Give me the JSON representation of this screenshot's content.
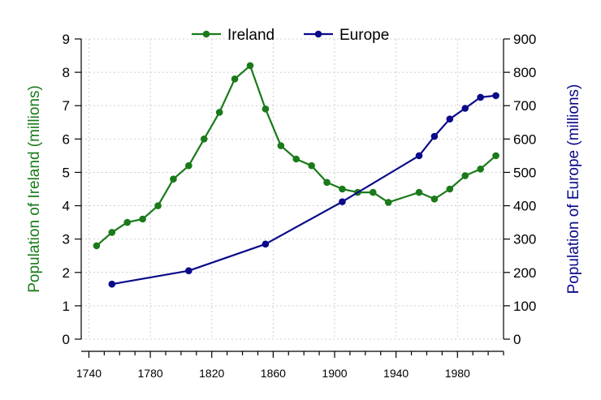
{
  "chart_data": {
    "type": "line",
    "x_axis": {
      "range": [
        1735,
        2010
      ],
      "ticks": [
        1740,
        1780,
        1820,
        1860,
        1900,
        1940,
        1980
      ],
      "minor_step": 10
    },
    "y_left": {
      "label": "Population of Ireland (millions)",
      "range": [
        0,
        9
      ],
      "ticks": [
        0,
        1,
        2,
        3,
        4,
        5,
        6,
        7,
        8,
        9
      ],
      "color": "#1a7a1a"
    },
    "y_right": {
      "label": "Population of Europe (millions)",
      "range": [
        0,
        900
      ],
      "ticks": [
        0,
        100,
        200,
        300,
        400,
        500,
        600,
        700,
        800,
        900
      ],
      "color": "#0a0a8a"
    },
    "grid": true,
    "legend": {
      "placement": "top-center"
    },
    "series": [
      {
        "name": "Ireland",
        "axis": "left",
        "color": "#1a7a1a",
        "x": [
          1745,
          1755,
          1765,
          1775,
          1785,
          1795,
          1805,
          1815,
          1825,
          1835,
          1845,
          1855,
          1865,
          1875,
          1885,
          1895,
          1905,
          1915,
          1925,
          1935,
          1955,
          1965,
          1975,
          1985,
          1995,
          2005
        ],
        "y": [
          2.8,
          3.2,
          3.5,
          3.6,
          4.0,
          4.8,
          5.2,
          6.0,
          6.8,
          7.8,
          8.2,
          6.9,
          5.8,
          5.4,
          5.2,
          4.7,
          4.5,
          4.4,
          4.4,
          4.1,
          4.4,
          4.2,
          4.5,
          4.9,
          5.1,
          5.5
        ]
      },
      {
        "name": "Europe",
        "axis": "right",
        "color": "#0a0a8a",
        "x": [
          1755,
          1805,
          1855,
          1905,
          1955,
          1965,
          1975,
          1985,
          1995,
          2005
        ],
        "y": [
          165,
          205,
          285,
          412,
          550,
          608,
          660,
          692,
          725,
          730
        ]
      }
    ]
  }
}
